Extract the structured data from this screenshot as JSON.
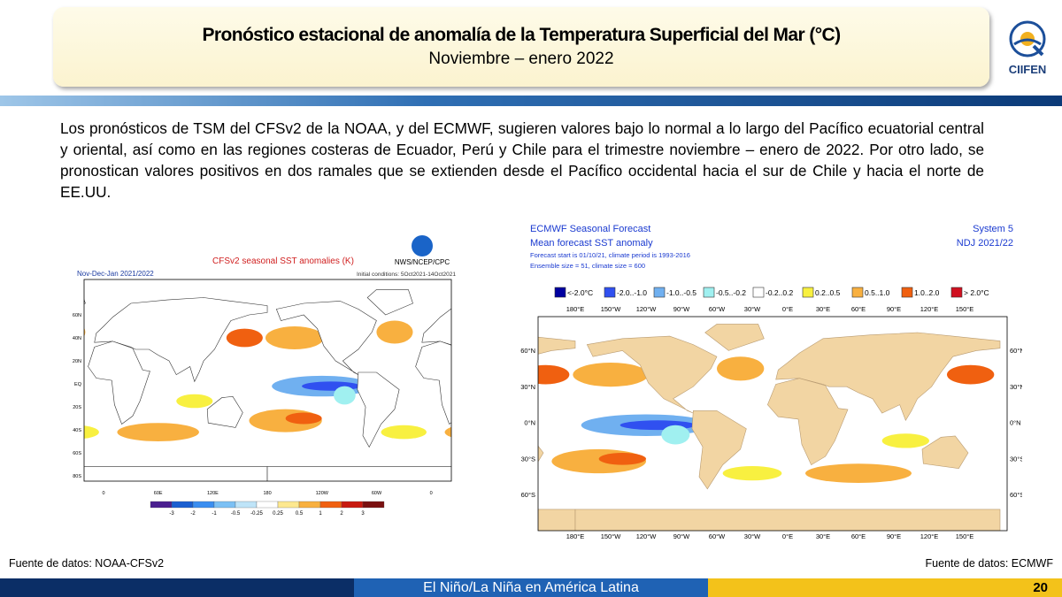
{
  "header": {
    "title": "Pronóstico estacional de anomalía de la Temperatura Superficial del Mar (°C)",
    "subtitle": "Noviembre – enero 2022",
    "logo": "CIIFEN"
  },
  "body": {
    "paragraph": "Los pronósticos de TSM del CFSv2 de la NOAA, y del ECMWF, sugieren valores bajo lo normal a lo largo del Pacífico ecuatorial central y oriental, así como en las regiones costeras de Ecuador, Perú y Chile para el trimestre noviembre – enero de 2022. Por otro lado, se pronostican valores positivos en dos ramales que se extienden desde el Pacífico occidental hacia el sur de Chile y hacia el norte de EE.UU."
  },
  "left_map": {
    "title": "CFSv2 seasonal SST anomalies (K)",
    "period": "Nov-Dec-Jan 2021/2022",
    "initial": "Initial conditions: 5Oct2021-14Oct2021",
    "agency": "NWS/NCEP/CPC",
    "lat_labels": [
      "60N",
      "40N",
      "20N",
      "EQ",
      "20S",
      "40S",
      "60S",
      "80S"
    ],
    "lon_labels": [
      "0",
      "60E",
      "120E",
      "180",
      "120W",
      "60W",
      "0"
    ],
    "colorbar_labels": [
      "-3",
      "-2",
      "-1",
      "-0.5",
      "-0.25",
      "0.25",
      "0.5",
      "1",
      "2",
      "3"
    ],
    "source": "Fuente de datos: NOAA-CFSv2"
  },
  "right_map": {
    "title": "ECMWF Seasonal Forecast",
    "subtitle": "Mean forecast SST anomaly",
    "forecast_start": "Forecast start is 01/10/21, climate period is 1993-2016",
    "ensemble": "Ensemble size = 51, climate size = 600",
    "system": "System 5",
    "season": "NDJ 2021/22",
    "legend": [
      "<-2.0°C",
      "-2.0..-1.0",
      "-1.0..-0.5",
      "-0.5..-0.2",
      "-0.2..0.2",
      "0.2..0.5",
      "0.5..1.0",
      "1.0..2.0",
      "> 2.0°C"
    ],
    "lon_labels": [
      "180°E",
      "150°W",
      "120°W",
      "90°W",
      "60°W",
      "30°W",
      "0°E",
      "30°E",
      "60°E",
      "90°E",
      "120°E",
      "150°E"
    ],
    "lat_labels": [
      "60°N",
      "30°N",
      "0°N",
      "30°S",
      "60°S"
    ],
    "source": "Fuente de datos: ECMWF"
  },
  "footer": {
    "label": "El Niño/La Niña en América Latina",
    "page": "20"
  }
}
